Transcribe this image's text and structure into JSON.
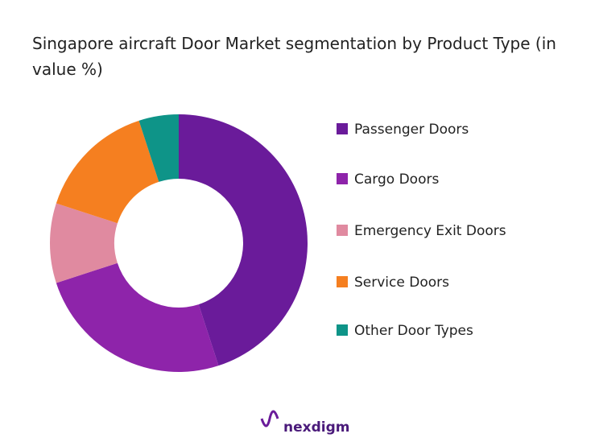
{
  "chart_data": {
    "type": "donut",
    "title": "Singapore aircraft Door Market segmentation by Product Type (in value %)",
    "categories": [
      "Passenger Doors",
      "Cargo Doors",
      "Emergency Exit Doors",
      "Service Doors",
      "Other Door Types"
    ],
    "values": [
      45,
      25,
      10,
      15,
      5
    ],
    "colors": [
      "#6a1b9a",
      "#8e24aa",
      "#e08aa0",
      "#f57f20",
      "#0e9488"
    ],
    "legend": "right",
    "watermark": "nexdigm"
  }
}
